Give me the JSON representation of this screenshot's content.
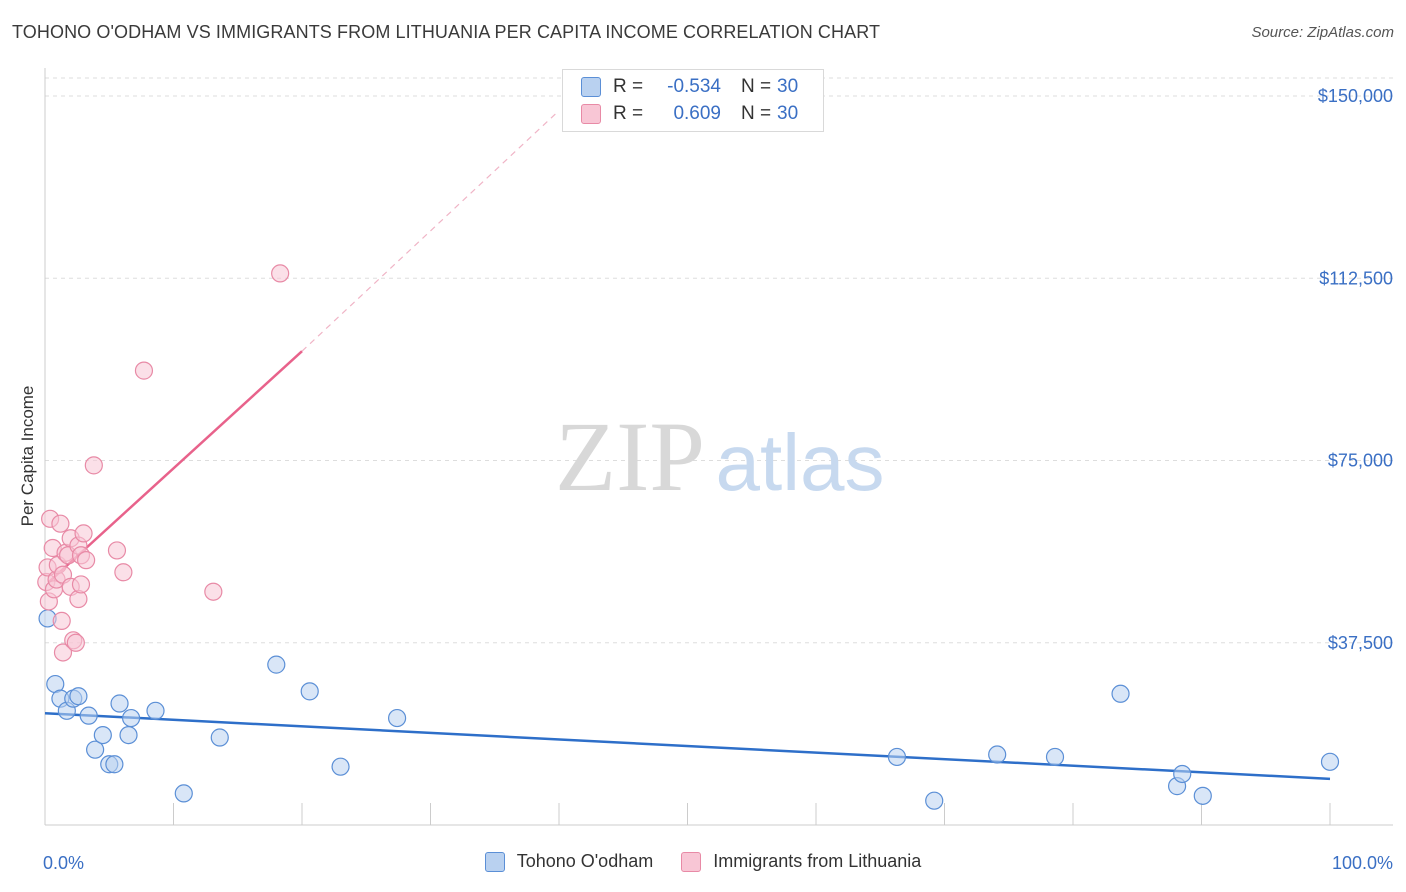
{
  "title": "TOHONO O'ODHAM VS IMMIGRANTS FROM LITHUANIA PER CAPITA INCOME CORRELATION CHART",
  "source": "Source: ZipAtlas.com",
  "watermark": {
    "zip": "ZIP",
    "atlas": "atlas"
  },
  "colors": {
    "blue": "#5b8fd6",
    "blue_fill": "#b9d1f0",
    "blue_line": "#2e6fc9",
    "pink": "#e88aa6",
    "pink_fill": "#f8c6d5",
    "pink_line": "#e8628b",
    "tick_label": "#3a6fc4",
    "grid": "#dddddd"
  },
  "legend": {
    "rows": [
      {
        "r_label": "R =",
        "r_value": "-0.534",
        "n_label": "N =",
        "n_value": "30"
      },
      {
        "r_label": "R =",
        "r_value": "0.609",
        "n_label": "N =",
        "n_value": "30"
      }
    ]
  },
  "chart_data": {
    "type": "scatter",
    "title": "TOHONO O'ODHAM VS IMMIGRANTS FROM LITHUANIA PER CAPITA INCOME CORRELATION CHART",
    "xlabel": "",
    "ylabel": "Per Capita Income",
    "xlim": [
      0,
      100
    ],
    "ylim": [
      0,
      157000
    ],
    "x_tick_labels": {
      "min": "0.0%",
      "max": "100.0%"
    },
    "y_ticks": [
      37500,
      75000,
      112500,
      150000
    ],
    "y_tick_labels": [
      "$37,500",
      "$75,000",
      "$112,500",
      "$150,000"
    ],
    "grid": true,
    "legend_position": "bottom",
    "series": [
      {
        "name": "Tohono O'odham",
        "color": "blue",
        "points": [
          [
            0.2,
            42500
          ],
          [
            0.8,
            29000
          ],
          [
            1.2,
            26000
          ],
          [
            1.7,
            23500
          ],
          [
            2.2,
            26000
          ],
          [
            2.6,
            26500
          ],
          [
            3.4,
            22500
          ],
          [
            3.9,
            15500
          ],
          [
            4.5,
            18500
          ],
          [
            5.0,
            12500
          ],
          [
            5.4,
            12500
          ],
          [
            5.8,
            25000
          ],
          [
            6.5,
            18500
          ],
          [
            6.7,
            22000
          ],
          [
            8.6,
            23500
          ],
          [
            10.8,
            6500
          ],
          [
            13.6,
            18000
          ],
          [
            18.0,
            33000
          ],
          [
            20.6,
            27500
          ],
          [
            23.0,
            12000
          ],
          [
            27.4,
            22000
          ],
          [
            66.3,
            14000
          ],
          [
            69.2,
            5000
          ],
          [
            74.1,
            14500
          ],
          [
            78.6,
            14000
          ],
          [
            83.7,
            27000
          ],
          [
            88.1,
            8000
          ],
          [
            88.5,
            10500
          ],
          [
            90.1,
            6000
          ],
          [
            100.0,
            13000
          ]
        ],
        "trend": {
          "x": [
            0,
            100
          ],
          "y": [
            23000,
            9500
          ]
        }
      },
      {
        "name": "Immigrants from Lithuania",
        "color": "pink",
        "points": [
          [
            0.1,
            50000
          ],
          [
            0.2,
            53000
          ],
          [
            0.3,
            46000
          ],
          [
            0.4,
            63000
          ],
          [
            0.6,
            57000
          ],
          [
            0.7,
            48500
          ],
          [
            0.9,
            50500
          ],
          [
            1.0,
            53500
          ],
          [
            1.2,
            62000
          ],
          [
            1.3,
            42000
          ],
          [
            1.4,
            51500
          ],
          [
            1.4,
            35500
          ],
          [
            1.6,
            56000
          ],
          [
            1.8,
            55500
          ],
          [
            2.0,
            59000
          ],
          [
            2.0,
            49000
          ],
          [
            2.2,
            38000
          ],
          [
            2.4,
            37500
          ],
          [
            2.6,
            46500
          ],
          [
            2.6,
            57500
          ],
          [
            2.8,
            49500
          ],
          [
            2.8,
            55500
          ],
          [
            3.0,
            60000
          ],
          [
            3.2,
            54500
          ],
          [
            3.8,
            74000
          ],
          [
            5.6,
            56500
          ],
          [
            6.1,
            52000
          ],
          [
            7.7,
            93500
          ],
          [
            13.1,
            48000
          ],
          [
            18.3,
            113500
          ]
        ],
        "trend": {
          "x": [
            0.3,
            20
          ],
          "y": [
            50000,
            97500
          ]
        },
        "trend_extension": {
          "x": [
            20,
            40
          ],
          "y": [
            97500,
            147000
          ]
        }
      }
    ]
  }
}
